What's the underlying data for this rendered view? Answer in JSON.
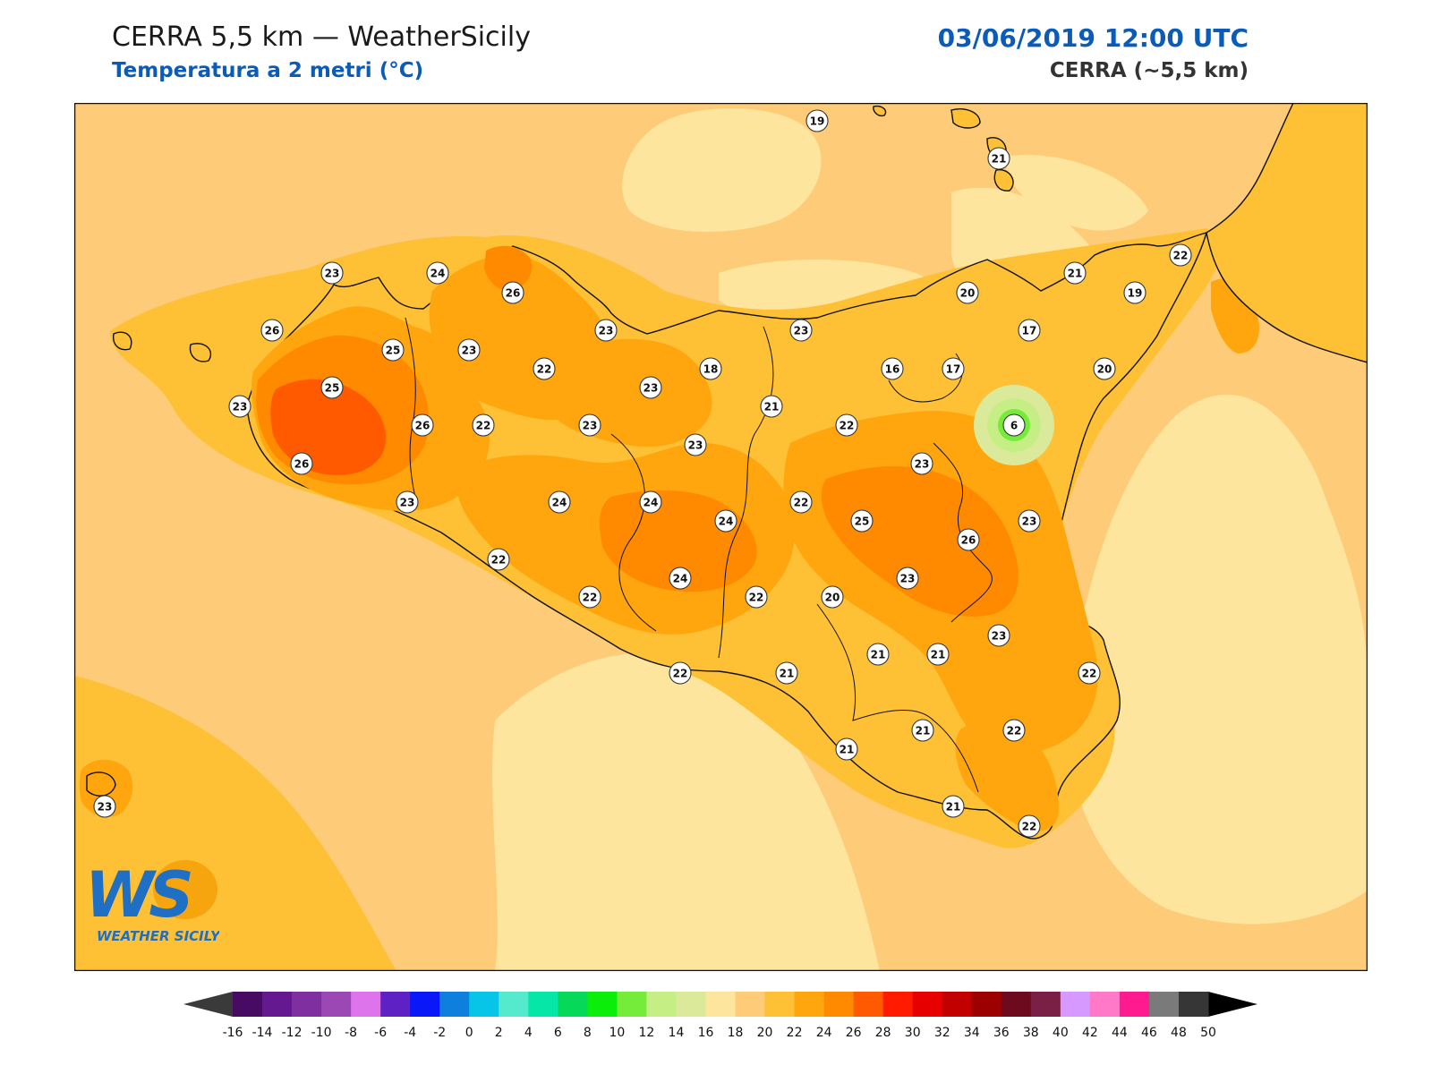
{
  "header": {
    "title": "CERRA 5,5 km — WeatherSicily",
    "subtitle": "Temperatura a 2 metri (°C)",
    "datetime": "03/06/2019 12:00 UTC",
    "model": "CERRA (~5,5 km)"
  },
  "logo": {
    "monogram": "WS",
    "text": "WEATHER SICILY"
  },
  "colors": {
    "sea": "#fecb78",
    "sea_light": "#fee59e",
    "land_22": "#fec035",
    "land_24": "#ffa60e",
    "land_26": "#ff8a00",
    "land_hot": "#ff5a00",
    "coast": "#111111"
  },
  "stations": [
    {
      "v": "19"
    },
    {
      "v": "21"
    },
    {
      "v": "23"
    },
    {
      "v": "24"
    },
    {
      "v": "26"
    },
    {
      "v": "22"
    },
    {
      "v": "21"
    },
    {
      "v": "20"
    },
    {
      "v": "19"
    },
    {
      "v": "26"
    },
    {
      "v": "25"
    },
    {
      "v": "23"
    },
    {
      "v": "23"
    },
    {
      "v": "23"
    },
    {
      "v": "17"
    },
    {
      "v": "25"
    },
    {
      "v": "22"
    },
    {
      "v": "18"
    },
    {
      "v": "16"
    },
    {
      "v": "17"
    },
    {
      "v": "20"
    },
    {
      "v": "23"
    },
    {
      "v": "23"
    },
    {
      "v": "21"
    },
    {
      "v": "26"
    },
    {
      "v": "22"
    },
    {
      "v": "23"
    },
    {
      "v": "22"
    },
    {
      "v": "6"
    },
    {
      "v": "23"
    },
    {
      "v": "26"
    },
    {
      "v": "23"
    },
    {
      "v": "23"
    },
    {
      "v": "24"
    },
    {
      "v": "24"
    },
    {
      "v": "22"
    },
    {
      "v": "24"
    },
    {
      "v": "25"
    },
    {
      "v": "23"
    },
    {
      "v": "26"
    },
    {
      "v": "22"
    },
    {
      "v": "24"
    },
    {
      "v": "23"
    },
    {
      "v": "22"
    },
    {
      "v": "22"
    },
    {
      "v": "20"
    },
    {
      "v": "23"
    },
    {
      "v": "21"
    },
    {
      "v": "21"
    },
    {
      "v": "22"
    },
    {
      "v": "21"
    },
    {
      "v": "22"
    },
    {
      "v": "22"
    },
    {
      "v": "21"
    },
    {
      "v": "21"
    },
    {
      "v": "21"
    },
    {
      "v": "22"
    },
    {
      "v": "23"
    }
  ],
  "colorbar": {
    "ticks": [
      "-16",
      "-14",
      "-12",
      "-10",
      "-8",
      "-6",
      "-4",
      "-2",
      "0",
      "2",
      "4",
      "6",
      "8",
      "10",
      "12",
      "14",
      "16",
      "18",
      "20",
      "22",
      "24",
      "26",
      "28",
      "30",
      "32",
      "34",
      "36",
      "38",
      "40",
      "42",
      "44",
      "46",
      "48",
      "50"
    ],
    "colors": [
      "#470b63",
      "#651991",
      "#7f2fa0",
      "#9b47b4",
      "#de74ec",
      "#5d21c4",
      "#0a17f7",
      "#0f7fdd",
      "#06c5e6",
      "#55e9cd",
      "#06e6a6",
      "#06d95a",
      "#0aee0a",
      "#76ec3a",
      "#c5ef85",
      "#dbe99a",
      "#fee59e",
      "#fecb78",
      "#fec035",
      "#ffa60e",
      "#ff8a00",
      "#ff5a00",
      "#ff1a00",
      "#e60000",
      "#c20000",
      "#9c0000",
      "#6e0a1e",
      "#7a1f45",
      "#d699ff",
      "#ff79c8",
      "#ff1a8f",
      "#7a7a7a",
      "#363636"
    ],
    "under_color": "#3a3a3a",
    "over_color": "#000000"
  }
}
